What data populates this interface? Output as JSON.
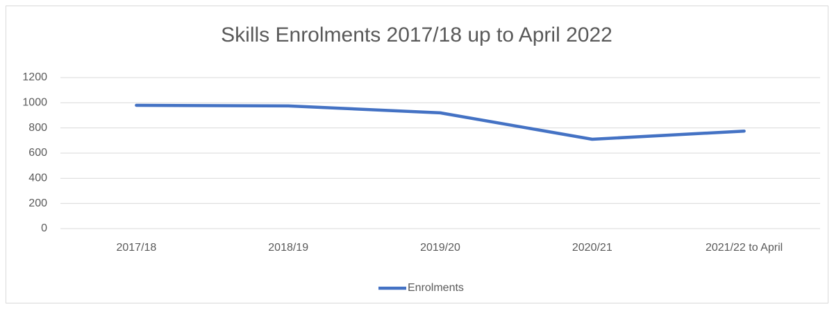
{
  "chart_data": {
    "type": "line",
    "title": "Skills Enrolments 2017/18 up to April 2022",
    "categories": [
      "2017/18",
      "2018/19",
      "2019/20",
      "2020/21",
      "2021/22 to April"
    ],
    "series": [
      {
        "name": "Enrolments",
        "color": "#4472c4",
        "values": [
          980,
          975,
          920,
          710,
          775
        ]
      }
    ],
    "ylim": [
      0,
      1200
    ],
    "yticks": [
      0,
      200,
      400,
      600,
      800,
      1000,
      1200
    ],
    "grid": true,
    "legend": "bottom"
  }
}
